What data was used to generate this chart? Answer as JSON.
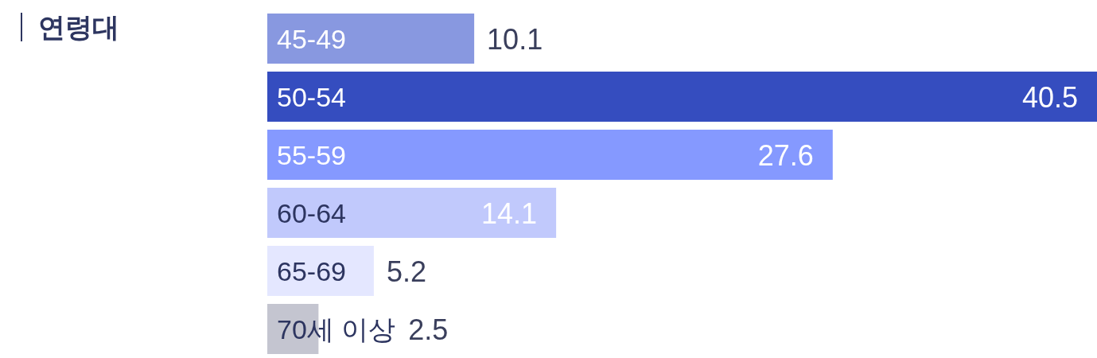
{
  "chart_data": {
    "type": "bar",
    "orientation": "horizontal",
    "title": "연령대",
    "categories": [
      "45-49",
      "50-54",
      "55-59",
      "60-64",
      "65-69",
      "70세 이상"
    ],
    "values": [
      10.1,
      40.5,
      27.6,
      14.1,
      5.2,
      2.5
    ],
    "colors": [
      "#8898e0",
      "#354dbf",
      "#8599ff",
      "#c1c9fc",
      "#e4e7ff",
      "#c4c5d0"
    ],
    "data_labels": true,
    "grid": false,
    "legend": false
  }
}
